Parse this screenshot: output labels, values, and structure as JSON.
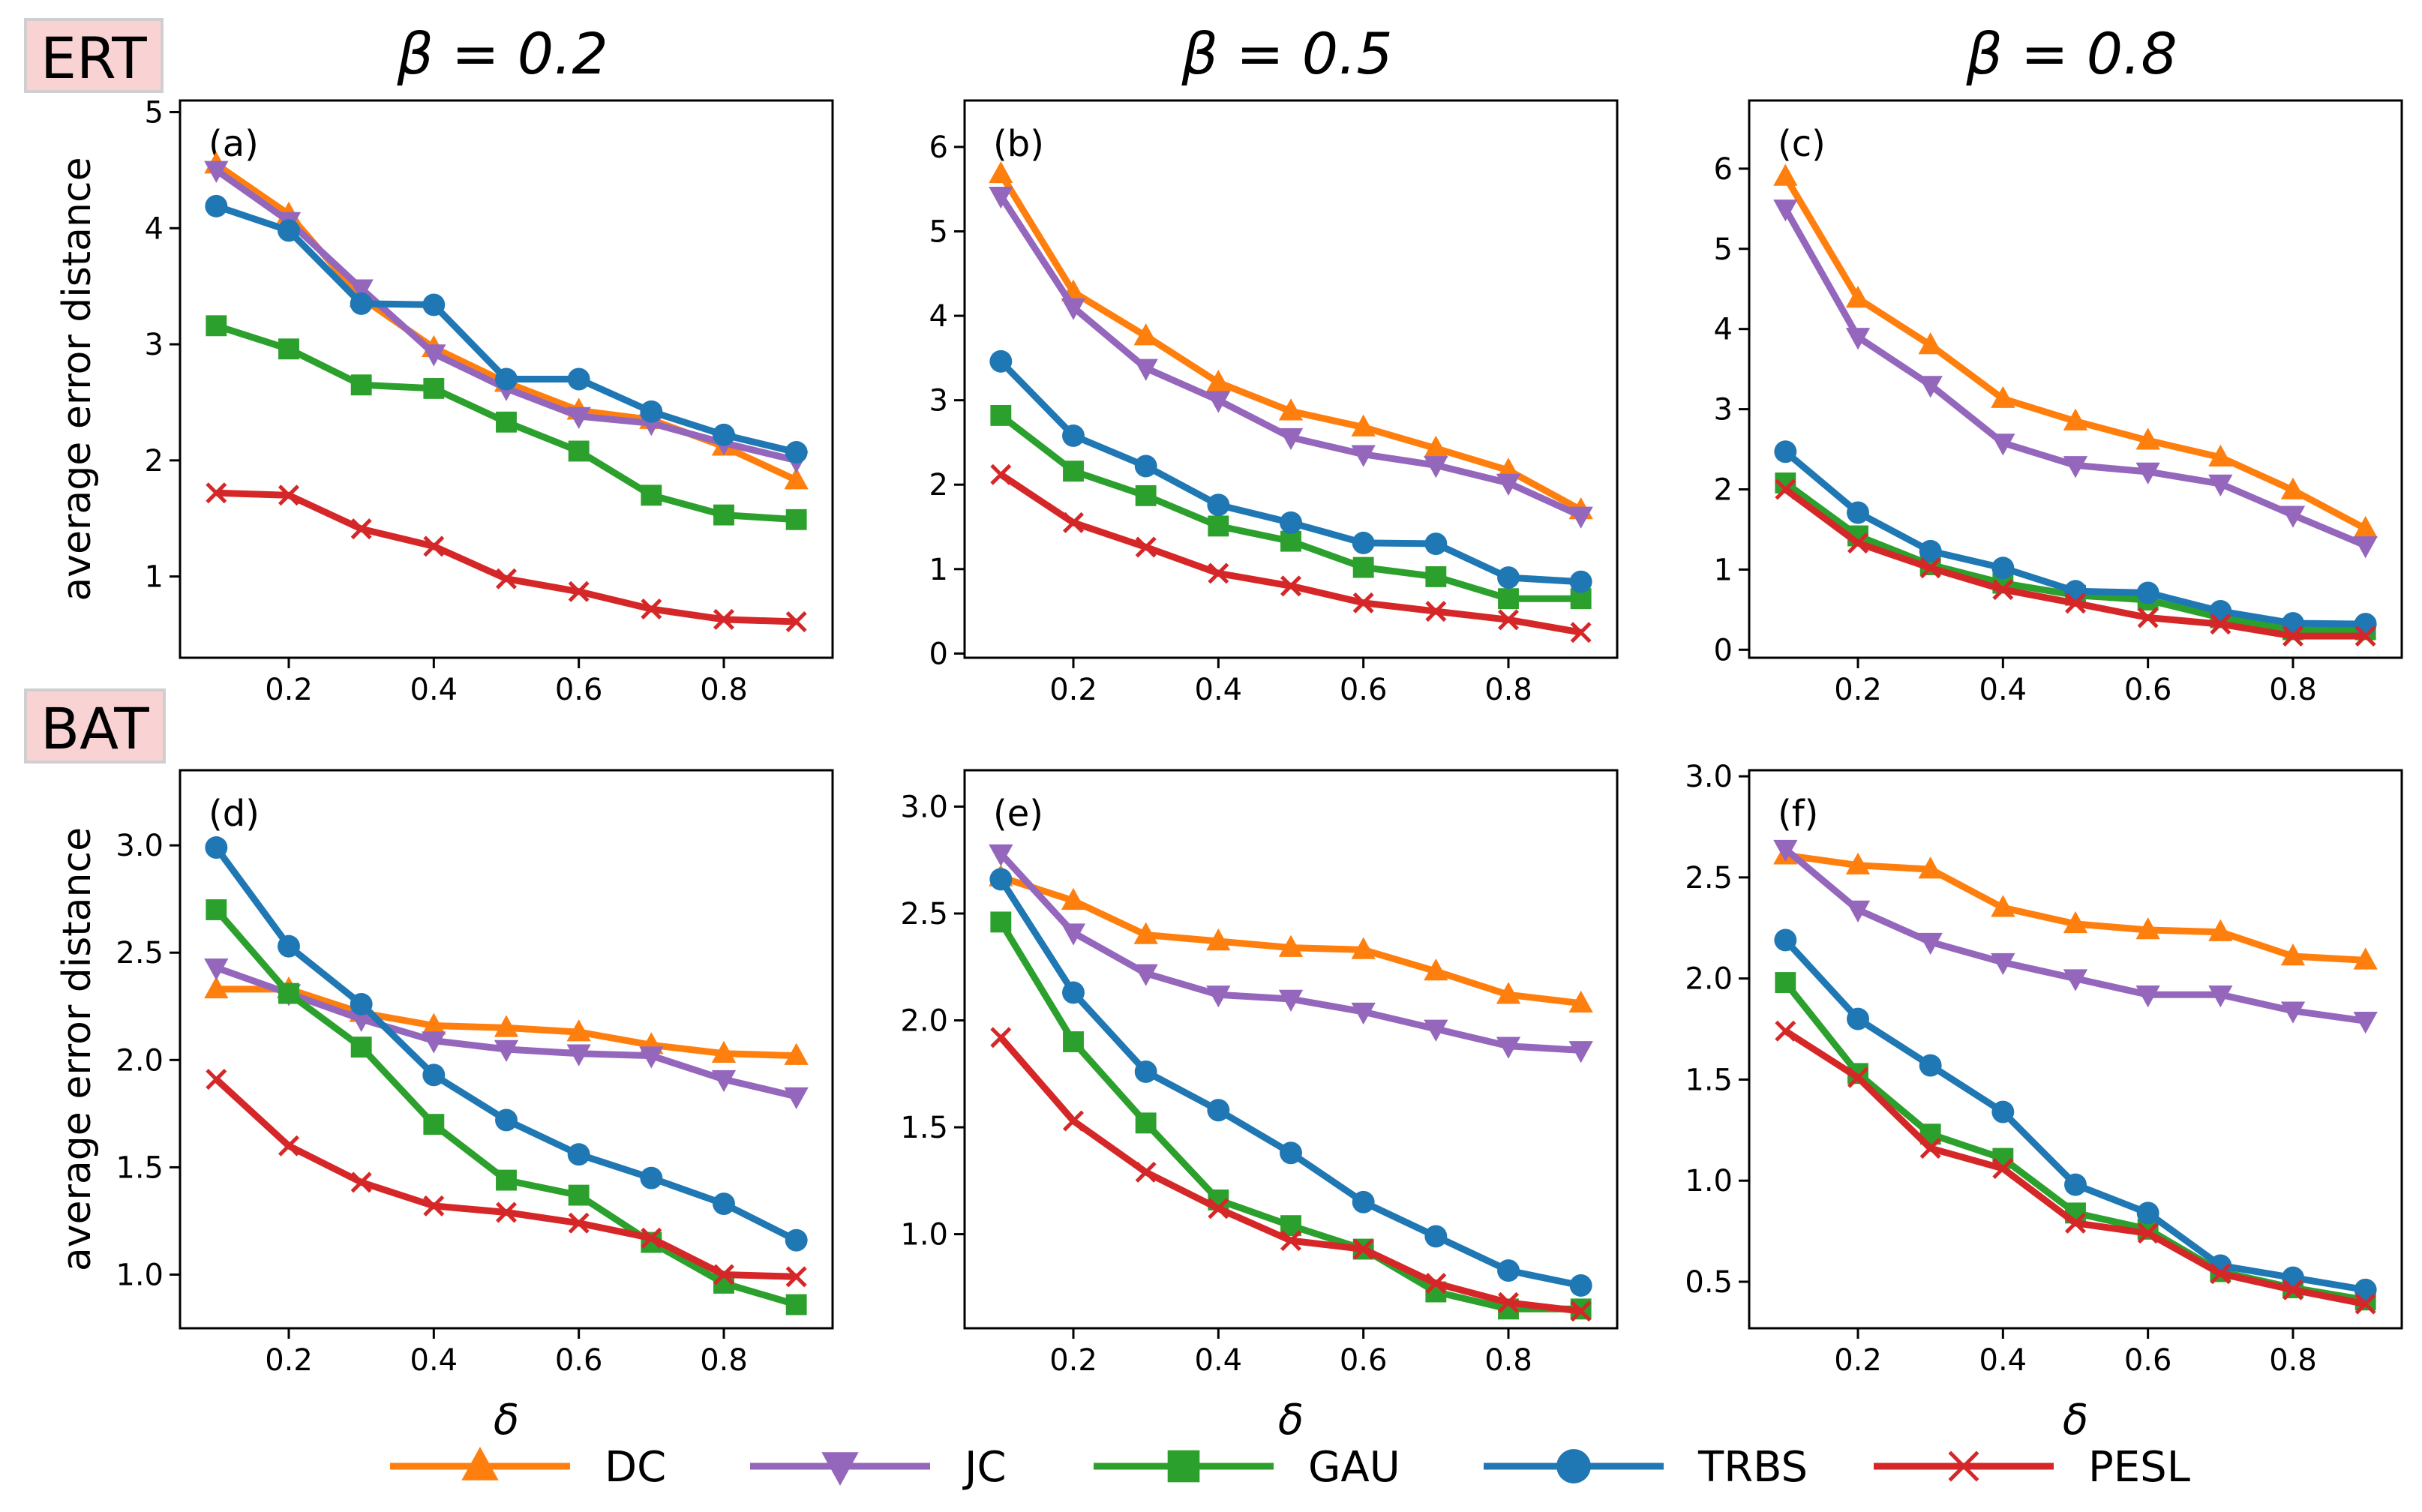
{
  "row_labels": [
    "ERT",
    "BAT"
  ],
  "column_titles": [
    "β = 0.2",
    "β = 0.5",
    "β = 0.8"
  ],
  "ylabel": "average error distance",
  "xlabel": "δ",
  "legend": [
    {
      "name": "DC",
      "color": "#ff7f0e",
      "marker": "triangle-up"
    },
    {
      "name": "JC",
      "color": "#9467bd",
      "marker": "triangle-down"
    },
    {
      "name": "GAU",
      "color": "#2ca02c",
      "marker": "square"
    },
    {
      "name": "TRBS",
      "color": "#1f77b4",
      "marker": "circle"
    },
    {
      "name": "PESL",
      "color": "#d62728",
      "marker": "x"
    }
  ],
  "chart_data": [
    {
      "type": "line",
      "panel_label": "(a)",
      "row": "ERT",
      "title": "β = 0.2",
      "x": [
        0.1,
        0.2,
        0.3,
        0.4,
        0.5,
        0.6,
        0.7,
        0.8,
        0.9
      ],
      "xticks": [
        "0.2",
        "0.4",
        "0.6",
        "0.8"
      ],
      "xlim": [
        0.05,
        0.95
      ],
      "ylim": [
        0.3,
        5.1
      ],
      "yticks": [
        1,
        2,
        3,
        4,
        5
      ],
      "yticklabels": [
        "1",
        "2",
        "3",
        "4",
        "5"
      ],
      "xlabel": "",
      "ylabel": "average error distance",
      "series": [
        {
          "name": "DC",
          "values": [
            4.55,
            4.12,
            3.4,
            2.97,
            2.67,
            2.43,
            2.35,
            2.12,
            1.83
          ]
        },
        {
          "name": "JC",
          "values": [
            4.5,
            4.06,
            3.48,
            2.92,
            2.62,
            2.38,
            2.32,
            2.15,
            2.0
          ]
        },
        {
          "name": "GAU",
          "values": [
            3.16,
            2.96,
            2.65,
            2.62,
            2.33,
            2.08,
            1.7,
            1.53,
            1.49
          ]
        },
        {
          "name": "TRBS",
          "values": [
            4.19,
            3.98,
            3.35,
            3.34,
            2.7,
            2.7,
            2.42,
            2.22,
            2.07
          ]
        },
        {
          "name": "PESL",
          "values": [
            1.72,
            1.7,
            1.41,
            1.26,
            0.98,
            0.87,
            0.72,
            0.63,
            0.61
          ]
        }
      ]
    },
    {
      "type": "line",
      "panel_label": "(b)",
      "row": "ERT",
      "title": "β = 0.5",
      "x": [
        0.1,
        0.2,
        0.3,
        0.4,
        0.5,
        0.6,
        0.7,
        0.8,
        0.9
      ],
      "xticks": [
        "0.2",
        "0.4",
        "0.6",
        "0.8"
      ],
      "xlim": [
        0.05,
        0.95
      ],
      "ylim": [
        -0.05,
        6.55
      ],
      "yticks": [
        0,
        1,
        2,
        3,
        4,
        5,
        6
      ],
      "yticklabels": [
        "0",
        "1",
        "2",
        "3",
        "4",
        "5",
        "6"
      ],
      "xlabel": "",
      "ylabel": "",
      "series": [
        {
          "name": "DC",
          "values": [
            5.68,
            4.28,
            3.76,
            3.21,
            2.87,
            2.68,
            2.43,
            2.17,
            1.7
          ]
        },
        {
          "name": "JC",
          "values": [
            5.42,
            4.1,
            3.38,
            3.0,
            2.56,
            2.36,
            2.23,
            2.02,
            1.63
          ]
        },
        {
          "name": "GAU",
          "values": [
            2.82,
            2.16,
            1.87,
            1.51,
            1.33,
            1.02,
            0.91,
            0.65,
            0.65
          ]
        },
        {
          "name": "TRBS",
          "values": [
            3.46,
            2.58,
            2.22,
            1.76,
            1.55,
            1.31,
            1.3,
            0.9,
            0.85
          ]
        },
        {
          "name": "PESL",
          "values": [
            2.12,
            1.55,
            1.26,
            0.95,
            0.8,
            0.6,
            0.5,
            0.4,
            0.25
          ]
        }
      ]
    },
    {
      "type": "line",
      "panel_label": "(c)",
      "row": "ERT",
      "title": "β = 0.8",
      "x": [
        0.1,
        0.2,
        0.3,
        0.4,
        0.5,
        0.6,
        0.7,
        0.8,
        0.9
      ],
      "xticks": [
        "0.2",
        "0.4",
        "0.6",
        "0.8"
      ],
      "xlim": [
        0.05,
        0.95
      ],
      "ylim": [
        -0.1,
        6.85
      ],
      "yticks": [
        0,
        1,
        2,
        3,
        4,
        5,
        6
      ],
      "yticklabels": [
        "0",
        "1",
        "2",
        "3",
        "4",
        "5",
        "6"
      ],
      "xlabel": "",
      "ylabel": "",
      "series": [
        {
          "name": "DC",
          "values": [
            5.9,
            4.38,
            3.8,
            3.13,
            2.85,
            2.61,
            2.4,
            1.99,
            1.51
          ]
        },
        {
          "name": "JC",
          "values": [
            5.5,
            3.9,
            3.3,
            2.58,
            2.3,
            2.22,
            2.07,
            1.68,
            1.3
          ]
        },
        {
          "name": "GAU",
          "values": [
            2.08,
            1.42,
            1.06,
            0.83,
            0.68,
            0.62,
            0.4,
            0.25,
            0.25
          ]
        },
        {
          "name": "TRBS",
          "values": [
            2.47,
            1.71,
            1.23,
            1.02,
            0.73,
            0.71,
            0.48,
            0.33,
            0.32
          ]
        },
        {
          "name": "PESL",
          "values": [
            2.0,
            1.33,
            1.02,
            0.75,
            0.58,
            0.4,
            0.32,
            0.17,
            0.17
          ]
        }
      ]
    },
    {
      "type": "line",
      "panel_label": "(d)",
      "row": "BAT",
      "title": "",
      "x": [
        0.1,
        0.2,
        0.3,
        0.4,
        0.5,
        0.6,
        0.7,
        0.8,
        0.9
      ],
      "xticks": [
        "0.2",
        "0.4",
        "0.6",
        "0.8"
      ],
      "xlim": [
        0.05,
        0.95
      ],
      "ylim": [
        0.75,
        3.35
      ],
      "yticks": [
        1.0,
        1.5,
        2.0,
        2.5,
        3.0
      ],
      "yticklabels": [
        "1.0",
        "1.5",
        "2.0",
        "2.5",
        "3.0"
      ],
      "xlabel": "δ",
      "ylabel": "average error distance",
      "series": [
        {
          "name": "DC",
          "values": [
            2.33,
            2.33,
            2.22,
            2.16,
            2.15,
            2.13,
            2.07,
            2.03,
            2.02
          ]
        },
        {
          "name": "JC",
          "values": [
            2.43,
            2.31,
            2.19,
            2.09,
            2.05,
            2.03,
            2.02,
            1.91,
            1.83
          ]
        },
        {
          "name": "GAU",
          "values": [
            2.7,
            2.31,
            2.06,
            1.7,
            1.44,
            1.37,
            1.15,
            0.96,
            0.86
          ]
        },
        {
          "name": "TRBS",
          "values": [
            2.99,
            2.53,
            2.26,
            1.93,
            1.72,
            1.56,
            1.45,
            1.33,
            1.16
          ]
        },
        {
          "name": "PESL",
          "values": [
            1.91,
            1.6,
            1.43,
            1.32,
            1.29,
            1.24,
            1.17,
            1.0,
            0.99
          ]
        }
      ]
    },
    {
      "type": "line",
      "panel_label": "(e)",
      "row": "BAT",
      "title": "",
      "x": [
        0.1,
        0.2,
        0.3,
        0.4,
        0.5,
        0.6,
        0.7,
        0.8,
        0.9
      ],
      "xticks": [
        "0.2",
        "0.4",
        "0.6",
        "0.8"
      ],
      "xlim": [
        0.05,
        0.95
      ],
      "ylim": [
        0.56,
        3.17
      ],
      "yticks": [
        1.0,
        1.5,
        2.0,
        2.5,
        3.0
      ],
      "yticklabels": [
        "1.0",
        "1.5",
        "2.0",
        "2.5",
        "3.0"
      ],
      "xlabel": "δ",
      "ylabel": "",
      "series": [
        {
          "name": "DC",
          "values": [
            2.67,
            2.56,
            2.4,
            2.37,
            2.34,
            2.33,
            2.23,
            2.12,
            2.08
          ]
        },
        {
          "name": "JC",
          "values": [
            2.78,
            2.41,
            2.22,
            2.12,
            2.1,
            2.04,
            1.96,
            1.88,
            1.86
          ]
        },
        {
          "name": "GAU",
          "values": [
            2.46,
            1.9,
            1.52,
            1.16,
            1.04,
            0.93,
            0.73,
            0.65,
            0.65
          ]
        },
        {
          "name": "TRBS",
          "values": [
            2.66,
            2.13,
            1.76,
            1.58,
            1.38,
            1.15,
            0.99,
            0.83,
            0.76
          ]
        },
        {
          "name": "PESL",
          "values": [
            1.92,
            1.53,
            1.29,
            1.12,
            0.97,
            0.93,
            0.77,
            0.68,
            0.64
          ]
        }
      ]
    },
    {
      "type": "line",
      "panel_label": "(f)",
      "row": "BAT",
      "title": "",
      "x": [
        0.1,
        0.2,
        0.3,
        0.4,
        0.5,
        0.6,
        0.7,
        0.8,
        0.9
      ],
      "xticks": [
        "0.2",
        "0.4",
        "0.6",
        "0.8"
      ],
      "xlim": [
        0.05,
        0.95
      ],
      "ylim": [
        0.27,
        3.03
      ],
      "yticks": [
        0.5,
        1.0,
        1.5,
        2.0,
        2.5,
        3.0
      ],
      "yticklabels": [
        "0.5",
        "1.0",
        "1.5",
        "2.0",
        "2.5",
        "3.0"
      ],
      "xlabel": "δ",
      "ylabel": "",
      "series": [
        {
          "name": "DC",
          "values": [
            2.61,
            2.56,
            2.54,
            2.35,
            2.27,
            2.24,
            2.23,
            2.11,
            2.09
          ]
        },
        {
          "name": "JC",
          "values": [
            2.64,
            2.34,
            2.18,
            2.08,
            2.0,
            1.92,
            1.92,
            1.84,
            1.79
          ]
        },
        {
          "name": "GAU",
          "values": [
            1.98,
            1.53,
            1.23,
            1.11,
            0.84,
            0.76,
            0.55,
            0.47,
            0.41
          ]
        },
        {
          "name": "TRBS",
          "values": [
            2.19,
            1.8,
            1.57,
            1.34,
            0.98,
            0.84,
            0.58,
            0.52,
            0.46
          ]
        },
        {
          "name": "PESL",
          "values": [
            1.74,
            1.51,
            1.16,
            1.06,
            0.79,
            0.74,
            0.54,
            0.46,
            0.39
          ]
        }
      ]
    }
  ]
}
